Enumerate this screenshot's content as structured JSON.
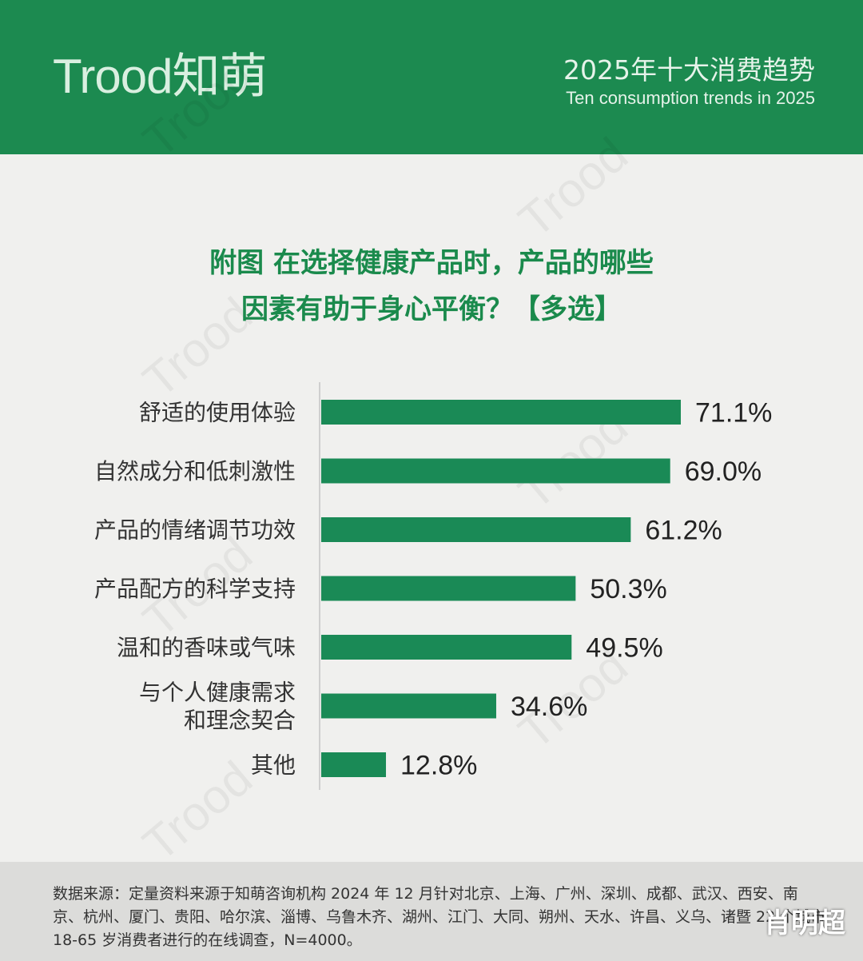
{
  "header": {
    "logo": "Trood知萌",
    "title": "2025年十大消费趋势",
    "subtitle": "Ten consumption trends in 2025"
  },
  "chart_title": {
    "line1": "附图 在选择健康产品时，产品的哪些",
    "line2": "因素有助于身心平衡？【多选】"
  },
  "chart_data": {
    "type": "bar",
    "orientation": "horizontal",
    "title": "附图 在选择健康产品时，产品的哪些因素有助于身心平衡？【多选】",
    "categories": [
      [
        "舒适的使用体验"
      ],
      [
        "自然成分和低刺激性"
      ],
      [
        "产品的情绪调节功效"
      ],
      [
        "产品配方的科学支持"
      ],
      [
        "温和的香味或气味"
      ],
      [
        "与个人健康需求",
        "和理念契合"
      ],
      [
        "其他"
      ]
    ],
    "values": [
      71.1,
      69.0,
      61.2,
      50.3,
      49.5,
      34.6,
      12.8
    ],
    "value_labels": [
      "71.1%",
      "69.0%",
      "61.2%",
      "50.3%",
      "49.5%",
      "34.6%",
      "12.8%"
    ],
    "bar_color": "#1a8a56",
    "xlim": [
      0,
      100
    ]
  },
  "footer": {
    "source": "数据来源：定量资料来源于知萌咨询机构 2024 年 12 月针对北京、上海、广州、深圳、成都、武汉、西安、南京、杭州、厦门、贵阳、哈尔滨、淄博、乌鲁木齐、湖州、江门、大同、朔州、天水、许昌、义乌、诸暨 22 个城市 18-65 岁消费者进行的在线调查，N=4000。"
  },
  "signature": "肖明超"
}
